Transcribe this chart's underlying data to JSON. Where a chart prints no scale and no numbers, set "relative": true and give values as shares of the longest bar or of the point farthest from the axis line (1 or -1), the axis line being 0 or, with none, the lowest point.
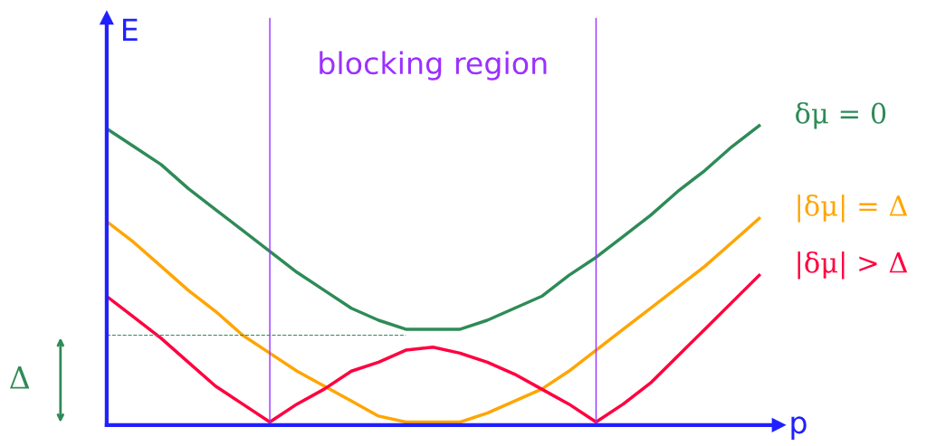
{
  "chart_data": {
    "type": "line",
    "relative": true,
    "xlabel": "p",
    "ylabel": "E",
    "categories": [
      null,
      null,
      null,
      null,
      null,
      null,
      null,
      null,
      null,
      null,
      null,
      null,
      null,
      null,
      null,
      null,
      null,
      null,
      null,
      null,
      null,
      null,
      null,
      null,
      null
    ],
    "marker": "none",
    "line_style": "solid",
    "series": [
      {
        "name": "δμ = 0",
        "color": "#2e8b57",
        "values": [
          0.99,
          0.93,
          0.87,
          0.79,
          0.72,
          0.65,
          0.58,
          0.51,
          0.45,
          0.39,
          0.35,
          0.32,
          0.32,
          0.32,
          0.35,
          0.39,
          0.43,
          0.5,
          0.56,
          0.63,
          0.7,
          0.78,
          0.85,
          0.93,
          1.0
        ]
      },
      {
        "name": "|δμ| = Δ",
        "color": "#ffa500",
        "values": [
          0.68,
          0.61,
          0.53,
          0.45,
          0.38,
          0.3,
          0.24,
          0.18,
          0.13,
          0.08,
          0.03,
          0.01,
          0.01,
          0.01,
          0.04,
          0.08,
          0.12,
          0.18,
          0.25,
          0.32,
          0.39,
          0.46,
          0.53,
          0.61,
          0.69
        ]
      },
      {
        "name": "|δμ| > Δ",
        "color": "#ff0040",
        "values": [
          0.43,
          0.36,
          0.29,
          0.21,
          0.13,
          0.07,
          0.01,
          0.07,
          0.12,
          0.18,
          0.21,
          0.25,
          0.26,
          0.24,
          0.21,
          0.17,
          0.12,
          0.07,
          0.01,
          0.07,
          0.14,
          0.23,
          0.32,
          0.41,
          0.5
        ]
      }
    ],
    "annotations": [
      "blocking region"
    ],
    "ref_lines": [
      {
        "axis": "y",
        "value": 0.3,
        "label": "Δ",
        "color": "#2e8b57",
        "line_style": "dashed"
      }
    ]
  }
}
